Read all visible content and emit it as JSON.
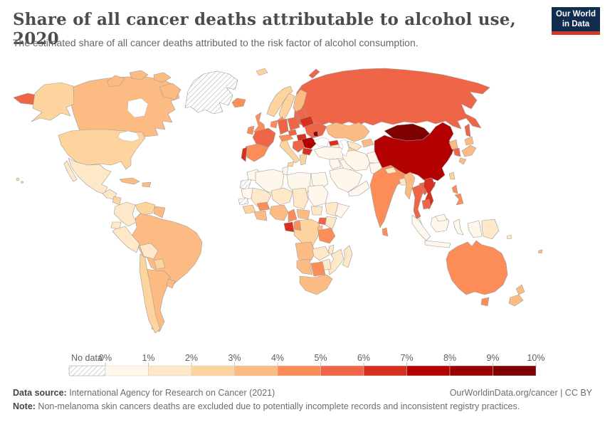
{
  "header": {
    "title": "Share of all cancer deaths attributable to alcohol use, 2020",
    "subtitle": "The estimated share of all cancer deaths attributed to the risk factor of alcohol consumption.",
    "logo": {
      "line1": "Our World",
      "line2": "in Data",
      "bg_color": "#102d50",
      "accent_color": "#cf3a2d"
    }
  },
  "legend": {
    "no_data_label": "No data",
    "tick_labels": [
      "0%",
      "1%",
      "2%",
      "3%",
      "4%",
      "5%",
      "6%",
      "7%",
      "8%",
      "9%",
      "10%"
    ]
  },
  "chart_data": {
    "type": "choropleth_map",
    "title": "Share of all cancer deaths attributable to alcohol use, 2020",
    "unit": "%",
    "year": "2020",
    "legend_position": "bottom",
    "bins": [
      {
        "range": "0-1%",
        "color": "#fff7ec"
      },
      {
        "range": "1-2%",
        "color": "#fee8c8"
      },
      {
        "range": "2-3%",
        "color": "#fdd49e"
      },
      {
        "range": "3-4%",
        "color": "#fdbb84"
      },
      {
        "range": "4-5%",
        "color": "#fc8d59"
      },
      {
        "range": "5-6%",
        "color": "#ef6548"
      },
      {
        "range": "6-7%",
        "color": "#d7301f"
      },
      {
        "range": "7-8%",
        "color": "#b30000"
      },
      {
        "range": "8-9%",
        "color": "#990000"
      },
      {
        "range": "9-10%",
        "color": "#7f0000"
      }
    ],
    "no_data": {
      "label": "No data",
      "pattern": "diagonal-hatch"
    },
    "countries": {
      "greenland": {
        "name": "Greenland",
        "range": "No data",
        "color": "nodata"
      },
      "western_sahara": {
        "name": "Western Sahara",
        "range": "No data",
        "color": "nodata"
      },
      "senegal": {
        "name": "Senegal",
        "range": "No data",
        "color": "nodata"
      },
      "canada": {
        "name": "Canada",
        "range": "3-4%",
        "color": "#fdbb84"
      },
      "usa": {
        "name": "United States",
        "range": "2-3%",
        "color": "#fdd49e"
      },
      "mexico": {
        "name": "Mexico",
        "range": "1-2%",
        "color": "#fee8c8"
      },
      "guatemala": {
        "name": "Guatemala",
        "range": "1-2%",
        "color": "#fee8c8"
      },
      "nicaragua": {
        "name": "Nicaragua",
        "range": "2-3%",
        "color": "#fdd49e"
      },
      "panama": {
        "name": "Panama",
        "range": "2-3%",
        "color": "#fdd49e"
      },
      "cuba": {
        "name": "Cuba",
        "range": "3-4%",
        "color": "#fdbb84"
      },
      "hispaniola": {
        "name": "Dominican Republic",
        "range": "3-4%",
        "color": "#fdbb84"
      },
      "colombia": {
        "name": "Colombia",
        "range": "1-2%",
        "color": "#fee8c8"
      },
      "venezuela": {
        "name": "Venezuela",
        "range": "2-3%",
        "color": "#fdd49e"
      },
      "guyanas": {
        "name": "Guyana",
        "range": "3-4%",
        "color": "#fdbb84"
      },
      "ecuador": {
        "name": "Ecuador",
        "range": "1-2%",
        "color": "#fee8c8"
      },
      "peru": {
        "name": "Peru",
        "range": "1-2%",
        "color": "#fee8c8"
      },
      "brazil": {
        "name": "Brazil",
        "range": "3-4%",
        "color": "#fdbb84"
      },
      "bolivia": {
        "name": "Bolivia",
        "range": "1-2%",
        "color": "#fee8c8"
      },
      "paraguay": {
        "name": "Paraguay",
        "range": "2-3%",
        "color": "#fdd49e"
      },
      "chile": {
        "name": "Chile",
        "range": "2-3%",
        "color": "#fdd49e"
      },
      "argentina": {
        "name": "Argentina",
        "range": "3-4%",
        "color": "#fdbb84"
      },
      "uruguay": {
        "name": "Uruguay",
        "range": "3-4%",
        "color": "#fdbb84"
      },
      "iceland": {
        "name": "Iceland",
        "range": "4-5%",
        "color": "#fc8d59"
      },
      "uk": {
        "name": "United Kingdom",
        "range": "4-5%",
        "color": "#fc8d59"
      },
      "ireland": {
        "name": "Ireland",
        "range": "4-5%",
        "color": "#fc8d59"
      },
      "norway": {
        "name": "Norway",
        "range": "2-3%",
        "color": "#fdd49e"
      },
      "sweden": {
        "name": "Sweden",
        "range": "2-3%",
        "color": "#fdd49e"
      },
      "finland": {
        "name": "Finland",
        "range": "3-4%",
        "color": "#fdbb84"
      },
      "denmark": {
        "name": "Denmark",
        "range": "4-5%",
        "color": "#fc8d59"
      },
      "baltics": {
        "name": "Baltic states",
        "range": "5-6%",
        "color": "#ef6548"
      },
      "belarus": {
        "name": "Belarus",
        "range": "6-7%",
        "color": "#d7301f"
      },
      "poland": {
        "name": "Poland",
        "range": "5-6%",
        "color": "#ef6548"
      },
      "germany": {
        "name": "Germany",
        "range": "5-6%",
        "color": "#ef6548"
      },
      "benelux": {
        "name": "Netherlands / Belgium",
        "range": "4-5%",
        "color": "#fc8d59"
      },
      "france": {
        "name": "France",
        "range": "5-6%",
        "color": "#ef6548"
      },
      "spain": {
        "name": "Spain",
        "range": "4-5%",
        "color": "#fc8d59"
      },
      "portugal": {
        "name": "Portugal",
        "range": "6-7%",
        "color": "#d7301f"
      },
      "switzerland_austria": {
        "name": "Switzerland / Austria",
        "range": "4-5%",
        "color": "#fc8d59"
      },
      "czechia": {
        "name": "Czechia",
        "range": "5-6%",
        "color": "#ef6548"
      },
      "italy": {
        "name": "Italy",
        "range": "2-3%",
        "color": "#fdd49e"
      },
      "hungary": {
        "name": "Hungary / Slovakia",
        "range": "6-7%",
        "color": "#d7301f"
      },
      "ukraine": {
        "name": "Ukraine",
        "range": "5-6%",
        "color": "#ef6548"
      },
      "moldova": {
        "name": "Moldova",
        "range": "8-9%",
        "color": "#990000"
      },
      "romania": {
        "name": "Romania",
        "range": "7-8%",
        "color": "#b30000"
      },
      "balkans": {
        "name": "Serbia / Bosnia / Croatia",
        "range": "5-6%",
        "color": "#ef6548"
      },
      "bulgaria": {
        "name": "Bulgaria",
        "range": "6-7%",
        "color": "#d7301f"
      },
      "greece": {
        "name": "Greece",
        "range": "2-3%",
        "color": "#fdd49e"
      },
      "russia": {
        "name": "Russia",
        "range": "5-6%",
        "color": "#ef6548"
      },
      "kazakhstan": {
        "name": "Kazakhstan",
        "range": "3-4%",
        "color": "#fdbb84"
      },
      "uzbekistan": {
        "name": "Uzbekistan",
        "range": "1-2%",
        "color": "#fee8c8"
      },
      "turkmenistan": {
        "name": "Turkmenistan",
        "range": "2-3%",
        "color": "#fdd49e"
      },
      "kyrgyzstan": {
        "name": "Kyrgyzstan / Tajikistan",
        "range": "3-4%",
        "color": "#fdbb84"
      },
      "georgia": {
        "name": "Georgia",
        "range": "6-7%",
        "color": "#d7301f"
      },
      "azerbaijan": {
        "name": "Azerbaijan / Armenia",
        "range": "1-2%",
        "color": "#fee8c8"
      },
      "turkey": {
        "name": "Turkey",
        "range": "0-1%",
        "color": "#fff7ec"
      },
      "syria": {
        "name": "Syria / Levant",
        "range": "0-1%",
        "color": "#fff7ec"
      },
      "iraq": {
        "name": "Iraq",
        "range": "0-1%",
        "color": "#fff7ec"
      },
      "saudi_arabia": {
        "name": "Saudi Arabia",
        "range": "0-1%",
        "color": "#fff7ec"
      },
      "yemen_oman": {
        "name": "Yemen / Oman",
        "range": "0-1%",
        "color": "#fff7ec"
      },
      "iran": {
        "name": "Iran",
        "range": "0-1%",
        "color": "#fff7ec"
      },
      "afghanistan": {
        "name": "Afghanistan",
        "range": "0-1%",
        "color": "#fff7ec"
      },
      "pakistan": {
        "name": "Pakistan",
        "range": "0-1%",
        "color": "#fff7ec"
      },
      "india": {
        "name": "India",
        "range": "4-5%",
        "color": "#fc8d59"
      },
      "nepal": {
        "name": "Nepal",
        "range": "1-2%",
        "color": "#fee8c8"
      },
      "bangladesh": {
        "name": "Bangladesh",
        "range": "1-2%",
        "color": "#fee8c8"
      },
      "sri_lanka": {
        "name": "Sri Lanka",
        "range": "4-5%",
        "color": "#fc8d59"
      },
      "mongolia": {
        "name": "Mongolia",
        "range": "9-10%",
        "color": "#7f0000"
      },
      "china": {
        "name": "China",
        "range": "7-8%",
        "color": "#b30000"
      },
      "taiwan": {
        "name": "Taiwan",
        "range": "2-3%",
        "color": "#fdd49e"
      },
      "north_korea": {
        "name": "North Korea",
        "range": "3-4%",
        "color": "#fdbb84"
      },
      "south_korea": {
        "name": "South Korea",
        "range": "5-6%",
        "color": "#ef6548"
      },
      "japan": {
        "name": "Japan",
        "range": "3-4%",
        "color": "#fdbb84"
      },
      "myanmar": {
        "name": "Myanmar",
        "range": "3-4%",
        "color": "#fdbb84"
      },
      "thailand": {
        "name": "Thailand",
        "range": "5-6%",
        "color": "#ef6548"
      },
      "laos": {
        "name": "Laos",
        "range": "5-6%",
        "color": "#ef6548"
      },
      "vietnam": {
        "name": "Vietnam",
        "range": "6-7%",
        "color": "#d7301f"
      },
      "cambodia": {
        "name": "Cambodia",
        "range": "5-6%",
        "color": "#ef6548"
      },
      "malaysia": {
        "name": "Malaysia",
        "range": "0-1%",
        "color": "#fff7ec"
      },
      "indonesia": {
        "name": "Indonesia",
        "range": "0-1%",
        "color": "#fff7ec"
      },
      "philippines": {
        "name": "Philippines",
        "range": "4-5%",
        "color": "#fc8d59"
      },
      "papua_new_guinea": {
        "name": "Papua New Guinea",
        "range": "1-2%",
        "color": "#fee8c8"
      },
      "australia": {
        "name": "Australia",
        "range": "4-5%",
        "color": "#fc8d59"
      },
      "new_zealand": {
        "name": "New Zealand",
        "range": "3-4%",
        "color": "#fdbb84"
      },
      "fiji": {
        "name": "Fiji",
        "range": "3-4%",
        "color": "#fdbb84"
      },
      "solomon_islands": {
        "name": "Solomon Islands",
        "range": "1-2%",
        "color": "#fee8c8"
      },
      "morocco": {
        "name": "Morocco",
        "range": "0-1%",
        "color": "#fff7ec"
      },
      "algeria": {
        "name": "Algeria",
        "range": "0-1%",
        "color": "#fff7ec"
      },
      "tunisia": {
        "name": "Tunisia",
        "range": "0-1%",
        "color": "#fff7ec"
      },
      "libya": {
        "name": "Libya",
        "range": "0-1%",
        "color": "#fff7ec"
      },
      "egypt": {
        "name": "Egypt",
        "range": "0-1%",
        "color": "#fff7ec"
      },
      "mauritania": {
        "name": "Mauritania",
        "range": "0-1%",
        "color": "#fff7ec"
      },
      "mali": {
        "name": "Mali",
        "range": "1-2%",
        "color": "#fee8c8"
      },
      "niger": {
        "name": "Niger",
        "range": "1-2%",
        "color": "#fee8c8"
      },
      "chad": {
        "name": "Chad",
        "range": "1-2%",
        "color": "#fee8c8"
      },
      "sudan": {
        "name": "Sudan",
        "range": "0-1%",
        "color": "#fff7ec"
      },
      "ethiopia": {
        "name": "Ethiopia",
        "range": "1-2%",
        "color": "#fee8c8"
      },
      "somalia": {
        "name": "Somalia",
        "range": "0-1%",
        "color": "#fff7ec"
      },
      "guinea": {
        "name": "Guinea",
        "range": "2-3%",
        "color": "#fdd49e"
      },
      "ivory_coast_ghana": {
        "name": "Côte d'Ivoire / Ghana",
        "range": "3-4%",
        "color": "#fdbb84"
      },
      "burkina_faso": {
        "name": "Burkina Faso",
        "range": "4-5%",
        "color": "#fc8d59"
      },
      "nigeria": {
        "name": "Nigeria",
        "range": "3-4%",
        "color": "#fdbb84"
      },
      "cameroon": {
        "name": "Cameroon",
        "range": "4-5%",
        "color": "#fc8d59"
      },
      "central_african_republic": {
        "name": "Central African Republic",
        "range": "3-4%",
        "color": "#fdbb84"
      },
      "south_sudan": {
        "name": "South Sudan",
        "range": "1-2%",
        "color": "#fee8c8"
      },
      "gabon": {
        "name": "Gabon",
        "range": "6-7%",
        "color": "#d7301f"
      },
      "congo": {
        "name": "Congo",
        "range": "4-5%",
        "color": "#fc8d59"
      },
      "drc": {
        "name": "Democratic Republic of Congo",
        "range": "2-3%",
        "color": "#fdd49e"
      },
      "uganda": {
        "name": "Uganda",
        "range": "5-6%",
        "color": "#ef6548"
      },
      "kenya": {
        "name": "Kenya",
        "range": "1-2%",
        "color": "#fee8c8"
      },
      "rwanda_burundi": {
        "name": "Rwanda / Burundi",
        "range": "3-4%",
        "color": "#fdbb84"
      },
      "tanzania": {
        "name": "Tanzania",
        "range": "4-5%",
        "color": "#fc8d59"
      },
      "angola": {
        "name": "Angola",
        "range": "3-4%",
        "color": "#fdbb84"
      },
      "zambia": {
        "name": "Zambia",
        "range": "1-2%",
        "color": "#fee8c8"
      },
      "malawi": {
        "name": "Malawi",
        "range": "1-2%",
        "color": "#fee8c8"
      },
      "mozambique": {
        "name": "Mozambique",
        "range": "1-2%",
        "color": "#fee8c8"
      },
      "zimbabwe": {
        "name": "Zimbabwe",
        "range": "1-2%",
        "color": "#fee8c8"
      },
      "namibia": {
        "name": "Namibia",
        "range": "3-4%",
        "color": "#fdbb84"
      },
      "botswana": {
        "name": "Botswana",
        "range": "4-5%",
        "color": "#fc8d59"
      },
      "south_africa": {
        "name": "South Africa",
        "range": "3-4%",
        "color": "#fdbb84"
      },
      "madagascar": {
        "name": "Madagascar",
        "range": "1-2%",
        "color": "#fee8c8"
      }
    }
  },
  "footer": {
    "source_label": "Data source:",
    "source_text": " International Agency for Research on Cancer (2021)",
    "link_text": "OurWorldinData.org/cancer | CC BY",
    "note_label": "Note:",
    "note_text": " Non-melanoma skin cancers deaths are excluded due to potentially incomplete records and inconsistent registry practices."
  }
}
